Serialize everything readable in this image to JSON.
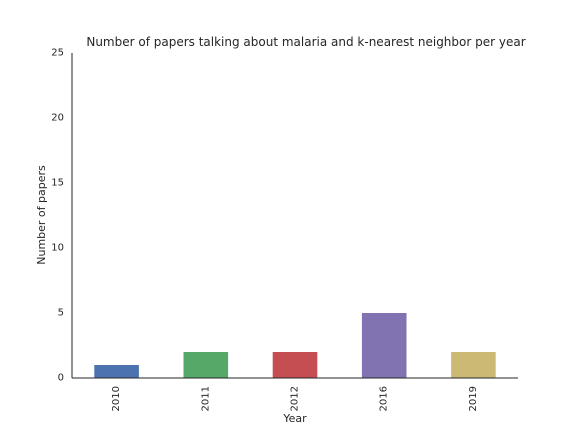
{
  "chart_data": {
    "type": "bar",
    "title": "Number of papers talking about malaria and k-nearest neighbor per year",
    "xlabel": "Year",
    "ylabel": "Number of papers",
    "categories": [
      "2010",
      "2011",
      "2012",
      "2016",
      "2019"
    ],
    "values": [
      1,
      2,
      2,
      5,
      2
    ],
    "colors": [
      "#4c72b0",
      "#55a868",
      "#c44e52",
      "#8172b2",
      "#ccb974"
    ],
    "ylim": [
      0,
      25
    ],
    "yticks": [
      "0",
      "5",
      "10",
      "15",
      "20",
      "25"
    ],
    "grid": false
  }
}
